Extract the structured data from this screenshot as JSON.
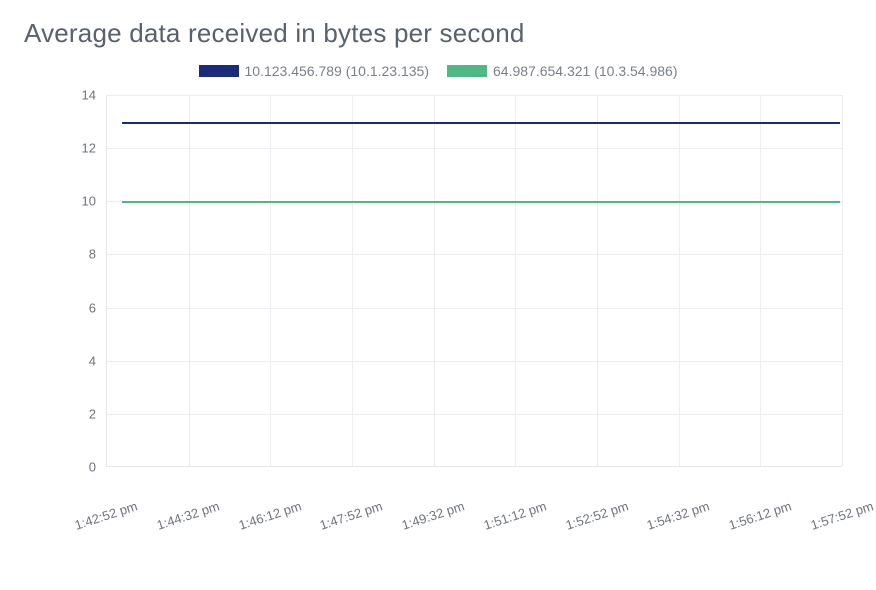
{
  "chart": {
    "type": "line",
    "title": "Average data received in bytes per second",
    "title_color": "#59616c",
    "title_fontsize": 26,
    "background_color": "#ffffff",
    "grid_color": "#ebedf0",
    "axis_color": "#e4e6ea",
    "tick_label_color": "#6e737b",
    "tick_fontsize": 13,
    "xtick_rotation_deg": -18,
    "line_width": 2,
    "ylim": [
      0,
      14
    ],
    "yticks": [
      0,
      2,
      4,
      6,
      8,
      10,
      12,
      14
    ],
    "xticks": [
      "1:42:52 pm",
      "1:44:32 pm",
      "1:46:12 pm",
      "1:47:52 pm",
      "1:49:32 pm",
      "1:51:12 pm",
      "1:52:52 pm",
      "1:54:32 pm",
      "1:56:12 pm",
      "1:57:52 pm"
    ],
    "legend": {
      "fontsize": 14,
      "text_color": "#7a7f87",
      "swatch_width": 40,
      "swatch_height": 12
    },
    "series": [
      {
        "label": "10.123.456.789 (10.1.23.135)",
        "color": "#1b2a7a",
        "value": 13
      },
      {
        "label": "64.987.654.321 (10.3.54.986)",
        "color": "#4fb983",
        "value": 10
      }
    ]
  }
}
